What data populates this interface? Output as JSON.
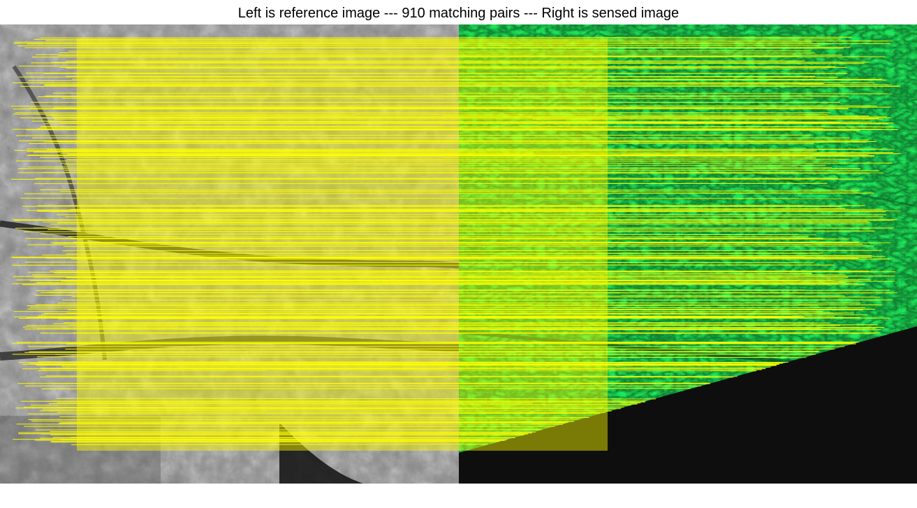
{
  "figure": {
    "title": "Left is reference image --- 910 matching pairs --- Right is sensed image",
    "colors": {
      "reference_base": "#8a8a8a",
      "sensed_base": "#1ee85a",
      "sensed_dark": "#0c7a2a",
      "empty_region": "#0e0e0e",
      "match_line": "#ffff00",
      "background": "#ffffff"
    }
  }
}
